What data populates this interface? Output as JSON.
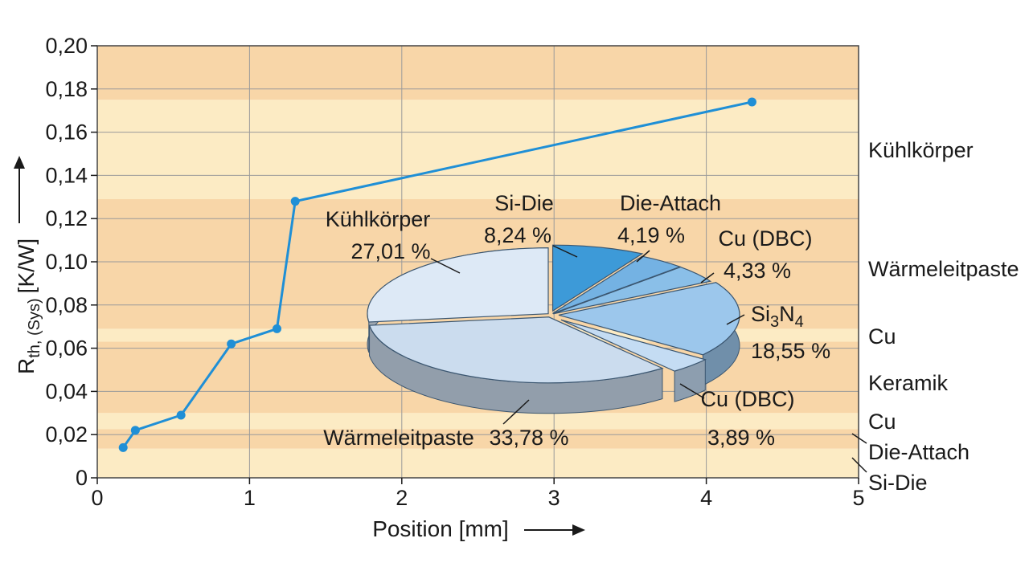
{
  "chart_data": [
    {
      "type": "line",
      "title": "",
      "xlabel": "Position [mm]",
      "ylabel": "R",
      "ylabel_sub": "th, (Sys)",
      "ylabel_unit": "[K/W]",
      "xlim": [
        0,
        5
      ],
      "ylim": [
        0,
        0.2
      ],
      "x_ticks": [
        0,
        1,
        2,
        3,
        4,
        5
      ],
      "x_tick_labels": [
        "0",
        "1",
        "2",
        "3",
        "4",
        "5"
      ],
      "y_ticks": [
        0,
        0.02,
        0.04,
        0.06,
        0.08,
        0.1,
        0.12,
        0.14,
        0.16,
        0.18,
        0.2
      ],
      "y_tick_labels": [
        "0",
        "0,02",
        "0,04",
        "0,06",
        "0,08",
        "0,10",
        "0,12",
        "0,14",
        "0,16",
        "0,18",
        "0,20"
      ],
      "grid": true,
      "series": [
        {
          "color": "#1f8fd6",
          "x": [
            0.17,
            0.25,
            0.55,
            0.88,
            1.18,
            1.3,
            4.3
          ],
          "y": [
            0.014,
            0.022,
            0.029,
            0.062,
            0.069,
            0.128,
            0.174
          ]
        }
      ],
      "layers": [
        {
          "name": "Si-Die",
          "y0": 0.0,
          "y1": 0.0135,
          "color": "#fcebc4"
        },
        {
          "name": "Die-Attach",
          "y0": 0.0135,
          "y1": 0.0225,
          "color": "#f8d6a8"
        },
        {
          "name": "Cu",
          "y0": 0.0225,
          "y1": 0.03,
          "color": "#fcebc4"
        },
        {
          "name": "Keramik",
          "y0": 0.03,
          "y1": 0.063,
          "color": "#f8d6a8"
        },
        {
          "name": "Cu",
          "y0": 0.063,
          "y1": 0.069,
          "color": "#fcebc4"
        },
        {
          "name": "Wärmeleitpaste",
          "y0": 0.069,
          "y1": 0.129,
          "color": "#f8d6a8"
        },
        {
          "name": "Kühlkörper",
          "y0": 0.129,
          "y1": 0.175,
          "color": "#fcebc4"
        },
        {
          "name": "",
          "y0": 0.175,
          "y1": 0.2,
          "color": "#f8d6a8"
        }
      ]
    },
    {
      "type": "pie",
      "slices": [
        {
          "label": "Si-Die",
          "value_label": "8,24 %",
          "value": 8.24,
          "color": "#3d9ad8"
        },
        {
          "label": "Die-Attach",
          "value_label": "4,19 %",
          "value": 4.19,
          "color": "#74b2e3"
        },
        {
          "label": "Cu (DBC)",
          "value_label": "4,33 %",
          "value": 4.33,
          "color": "#8abfe8"
        },
        {
          "label": "Si",
          "label_sub1": "3",
          "label_mid": "N",
          "label_sub2": "4",
          "value_label": "18,55 %",
          "value": 18.55,
          "color": "#9cc7ec"
        },
        {
          "label": "Cu (DBC)",
          "value_label": "3,89 %",
          "value": 3.89,
          "color": "#c4dcf3"
        },
        {
          "label": "Wärmeleitpaste",
          "value_label": "33,78 %",
          "value": 33.78,
          "color": "#cbdcee"
        },
        {
          "label": "Kühlkörper",
          "value_label": "27,01 %",
          "value": 27.01,
          "color": "#dde9f6"
        }
      ]
    }
  ],
  "arrow_color": "#1a1a1a"
}
